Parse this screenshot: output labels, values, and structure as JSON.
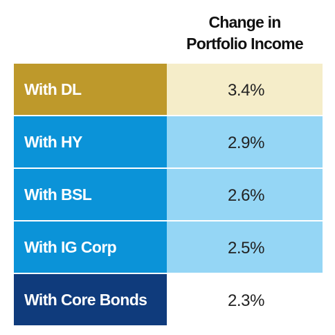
{
  "chart_data": {
    "type": "table",
    "column_header_lines": [
      "Change in",
      "Portfolio Income"
    ],
    "rows": [
      {
        "label": "With DL",
        "value": "3.4%",
        "number": 3.4,
        "label_color": "#BE992B",
        "value_color": "#F5EDC9",
        "label_text_color": "#FFFFFF",
        "value_text_color": "#222222"
      },
      {
        "label": "With HY",
        "value": "2.9%",
        "number": 2.9,
        "label_color": "#0B93D8",
        "value_color": "#95D6F5",
        "label_text_color": "#FFFFFF",
        "value_text_color": "#222222"
      },
      {
        "label": "With BSL",
        "value": "2.6%",
        "number": 2.6,
        "label_color": "#0B93D8",
        "value_color": "#95D6F5",
        "label_text_color": "#FFFFFF",
        "value_text_color": "#222222"
      },
      {
        "label": "With IG Corp",
        "value": "2.5%",
        "number": 2.5,
        "label_color": "#0B93D8",
        "value_color": "#95D6F5",
        "label_text_color": "#FFFFFF",
        "value_text_color": "#222222"
      },
      {
        "label": "With Core Bonds",
        "value": "2.3%",
        "number": 2.3,
        "label_color": "#0F3B7C",
        "value_color": "#FFFFFF",
        "label_text_color": "#FFFFFF",
        "value_text_color": "#222222"
      }
    ]
  }
}
